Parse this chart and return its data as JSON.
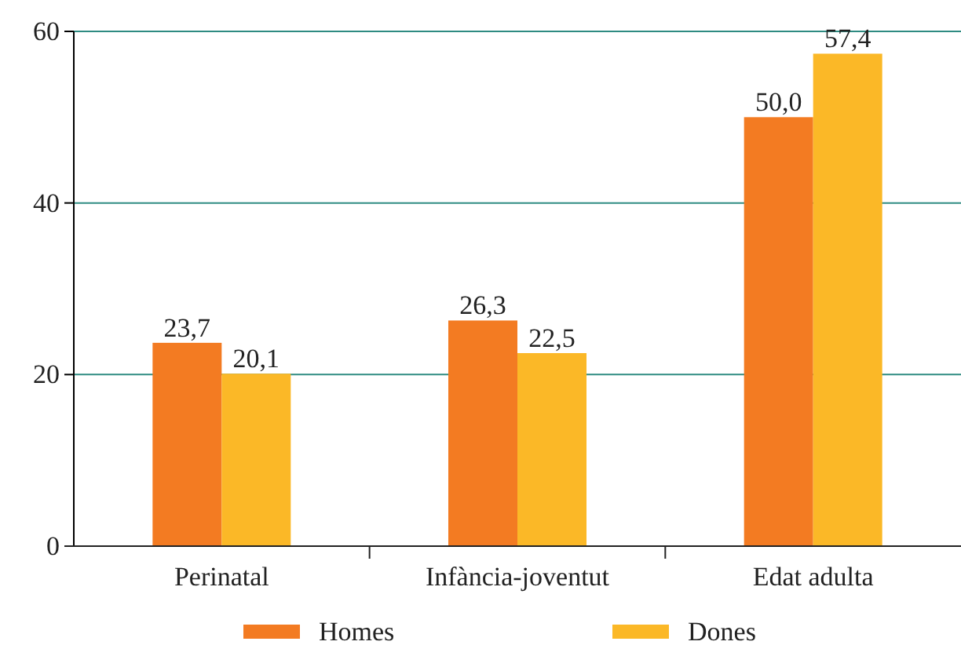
{
  "chart_data": {
    "type": "bar",
    "categories": [
      "Perinatal",
      "Infància-joventut",
      "Edat adulta"
    ],
    "series": [
      {
        "name": "Homes",
        "color": "#f37b22",
        "values": [
          23.7,
          26.3,
          50.0
        ],
        "value_labels": [
          "23,7",
          "26,3",
          "50,0"
        ]
      },
      {
        "name": "Dones",
        "color": "#fbb827",
        "values": [
          20.1,
          22.5,
          57.4
        ],
        "value_labels": [
          "20,1",
          "22,5",
          "57,4"
        ]
      }
    ],
    "ylim": [
      0,
      60
    ],
    "yticks": [
      0,
      20,
      40,
      60
    ],
    "grid": "y",
    "legend": "bottom"
  }
}
